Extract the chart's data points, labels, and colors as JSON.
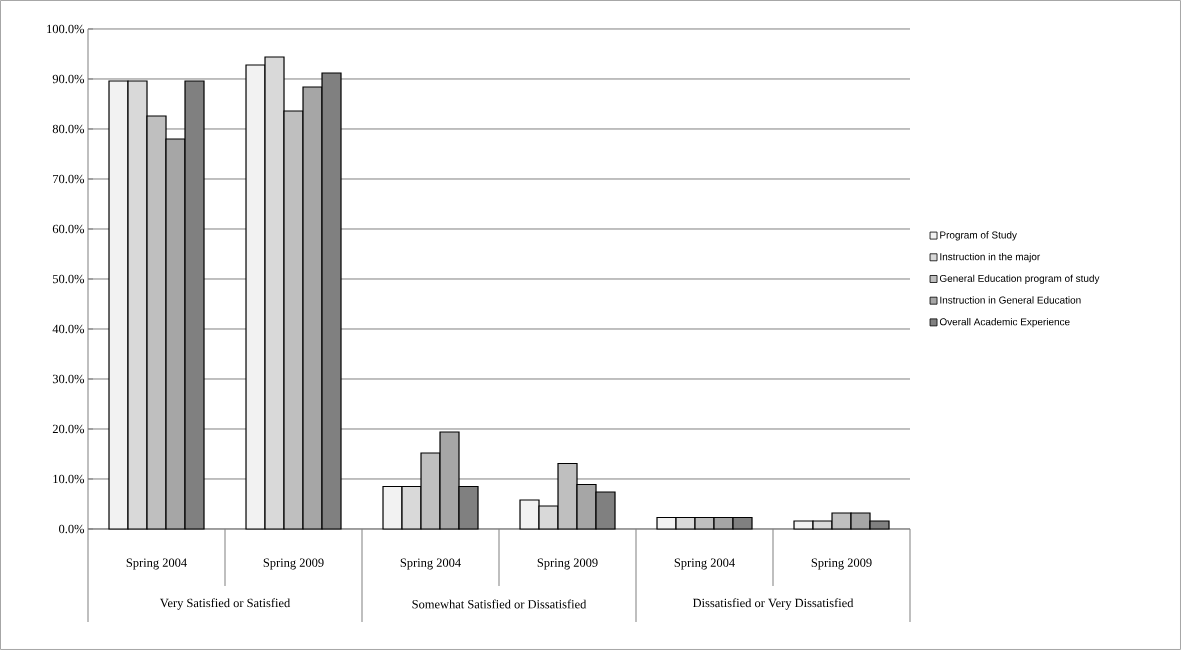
{
  "chart_data": {
    "type": "bar",
    "categories": [
      "Spring 2004",
      "Spring 2009",
      "Spring 2004",
      "Spring 2009",
      "Spring 2004",
      "Spring 2009"
    ],
    "annotations": [
      "Very Satisfied or Satisfied",
      "Somewhat Satisfied or Dissatisfied",
      "Dissatisfied or Very Dissatisfied"
    ],
    "series": [
      {
        "name": "Program of Study",
        "color": "#f2f2f2",
        "values": [
          89.6,
          92.8,
          8.5,
          5.8,
          2.3,
          1.6
        ]
      },
      {
        "name": "Instruction in the major",
        "color": "#d9d9d9",
        "values": [
          89.6,
          94.4,
          8.5,
          4.6,
          2.3,
          1.6
        ]
      },
      {
        "name": "General Education program of study",
        "color": "#bfbfbf",
        "values": [
          82.6,
          83.6,
          15.2,
          13.1,
          2.3,
          3.2
        ]
      },
      {
        "name": "Instruction in General Education",
        "color": "#a6a6a6",
        "values": [
          78.0,
          88.4,
          19.4,
          8.9,
          2.3,
          3.2
        ]
      },
      {
        "name": "Overall Academic Experience",
        "color": "#808080",
        "values": [
          89.6,
          91.2,
          8.5,
          7.4,
          2.3,
          1.6
        ]
      }
    ],
    "ylim": [
      0,
      100
    ],
    "yticks": [
      {
        "value": 0,
        "label": "0.0%"
      },
      {
        "value": 10,
        "label": "10.0%"
      },
      {
        "value": 20,
        "label": "20.0%"
      },
      {
        "value": 30,
        "label": "30.0%"
      },
      {
        "value": 40,
        "label": "40.0%"
      },
      {
        "value": 50,
        "label": "50.0%"
      },
      {
        "value": 60,
        "label": "60.0%"
      },
      {
        "value": 70,
        "label": "70.0%"
      },
      {
        "value": 80,
        "label": "80.0%"
      },
      {
        "value": 90,
        "label": "90.0%"
      },
      {
        "value": 100,
        "label": "100.0%"
      }
    ],
    "grid": "y",
    "legend": "right"
  }
}
